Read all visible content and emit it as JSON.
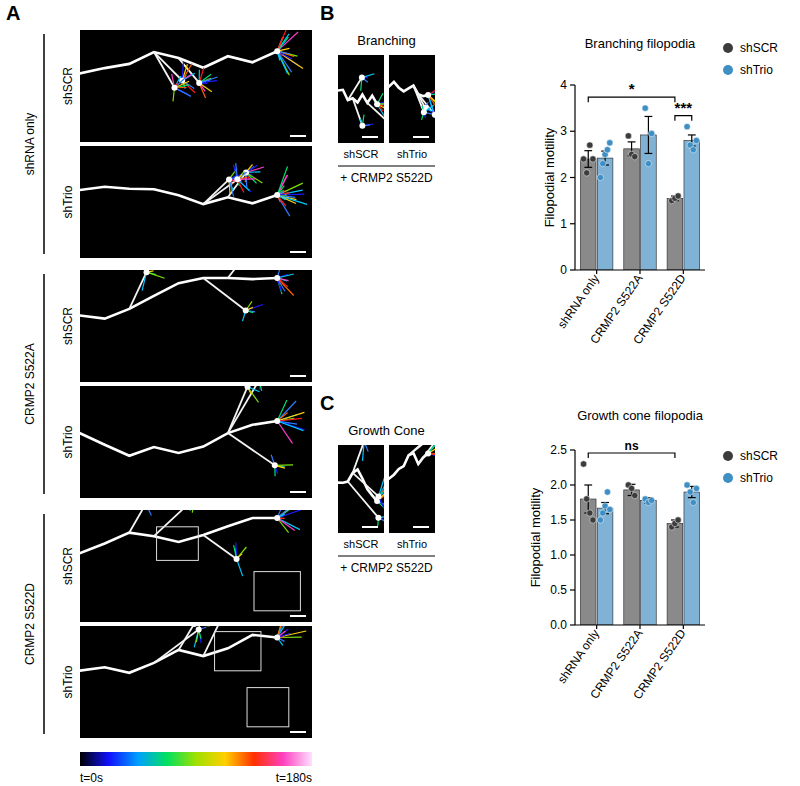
{
  "panel_letters": [
    "A",
    "B",
    "C"
  ],
  "panel_a": {
    "groups": [
      {
        "label": "shRNA only",
        "rows": [
          "shSCR",
          "shTrio"
        ]
      },
      {
        "label": "CRMP2 S522A",
        "rows": [
          "shSCR",
          "shTrio"
        ]
      },
      {
        "label": "CRMP2 S522D",
        "rows": [
          "shSCR",
          "shTrio"
        ]
      }
    ],
    "time_scale": {
      "start": "t=0s",
      "end": "t=180s"
    }
  },
  "panel_b_images": {
    "title": "Branching",
    "labels": [
      "shSCR",
      "shTrio"
    ],
    "caption": "+ CRMP2 S522D"
  },
  "panel_c_images": {
    "title": "Growth Cone",
    "labels": [
      "shSCR",
      "shTrio"
    ],
    "caption": "+ CRMP2 S522D"
  },
  "chart_data": [
    {
      "type": "bar",
      "title": "Branching filopodia",
      "y_label": "Filopodial motility",
      "categories": [
        "shRNA only",
        "CRMP2 S522A",
        "CRMP2 S522D"
      ],
      "ylim": [
        0,
        4
      ],
      "yticks": [
        0,
        1,
        2,
        3,
        4
      ],
      "grid": false,
      "legend": "right",
      "series": [
        {
          "name": "shSCR",
          "color": "#8a8a8a",
          "values": [
            2.4,
            2.62,
            1.55
          ],
          "errors": [
            0.18,
            0.15,
            0.05
          ],
          "points": [
            [
              2.4,
              2.1,
              2.7,
              2.4
            ],
            [
              2.9,
              2.5,
              2.45
            ],
            [
              1.5,
              1.55,
              1.6
            ]
          ]
        },
        {
          "name": "shTrio",
          "color": "#7fb2d4",
          "values": [
            2.42,
            2.92,
            2.8
          ],
          "errors": [
            0.15,
            0.4,
            0.12
          ],
          "points": [
            [
              2.0,
              2.3,
              2.5,
              2.6,
              2.75
            ],
            [
              3.5,
              2.3,
              2.95
            ],
            [
              3.1,
              2.7,
              2.6,
              2.8
            ]
          ]
        }
      ],
      "annotations": [
        {
          "text": "*",
          "from": [
            0,
            0
          ],
          "to": [
            2,
            0
          ]
        },
        {
          "text": "***",
          "from": [
            2,
            0
          ],
          "to": [
            2,
            1
          ]
        }
      ]
    },
    {
      "type": "bar",
      "title": "Growth cone filopodia",
      "y_label": "Filopodial motility",
      "categories": [
        "shRNA only",
        "CRMP2 S522A",
        "CRMP2 S522D"
      ],
      "ylim": [
        0,
        2.5
      ],
      "yticks": [
        {
          "value": 0,
          "label": "0.0"
        },
        {
          "value": 0.5,
          "label": "0.5"
        },
        {
          "value": 1,
          "label": "1.0"
        },
        {
          "value": 1.5,
          "label": "1.5"
        },
        {
          "value": 2,
          "label": "2.0"
        },
        {
          "value": 2.5,
          "label": "2.5"
        }
      ],
      "grid": false,
      "legend": "right",
      "series": [
        {
          "name": "shSCR",
          "color": "#8a8a8a",
          "values": [
            1.8,
            1.93,
            1.45
          ],
          "errors": [
            0.2,
            0.08,
            0.05
          ],
          "points": [
            [
              2.3,
              1.8,
              1.6,
              1.5
            ],
            [
              2.0,
              1.95,
              1.85
            ],
            [
              1.4,
              1.45,
              1.5
            ]
          ]
        },
        {
          "name": "shTrio",
          "color": "#7fb2d4",
          "values": [
            1.67,
            1.78,
            1.9
          ],
          "errors": [
            0.08,
            0.04,
            0.08
          ],
          "points": [
            [
              1.5,
              1.6,
              1.7,
              1.9,
              1.65
            ],
            [
              1.8,
              1.75,
              1.78
            ],
            [
              2.0,
              1.9,
              1.75,
              1.95
            ]
          ]
        }
      ],
      "annotations": [
        {
          "text": "ns",
          "from": [
            0,
            0
          ],
          "to": [
            2,
            0
          ]
        }
      ]
    }
  ]
}
